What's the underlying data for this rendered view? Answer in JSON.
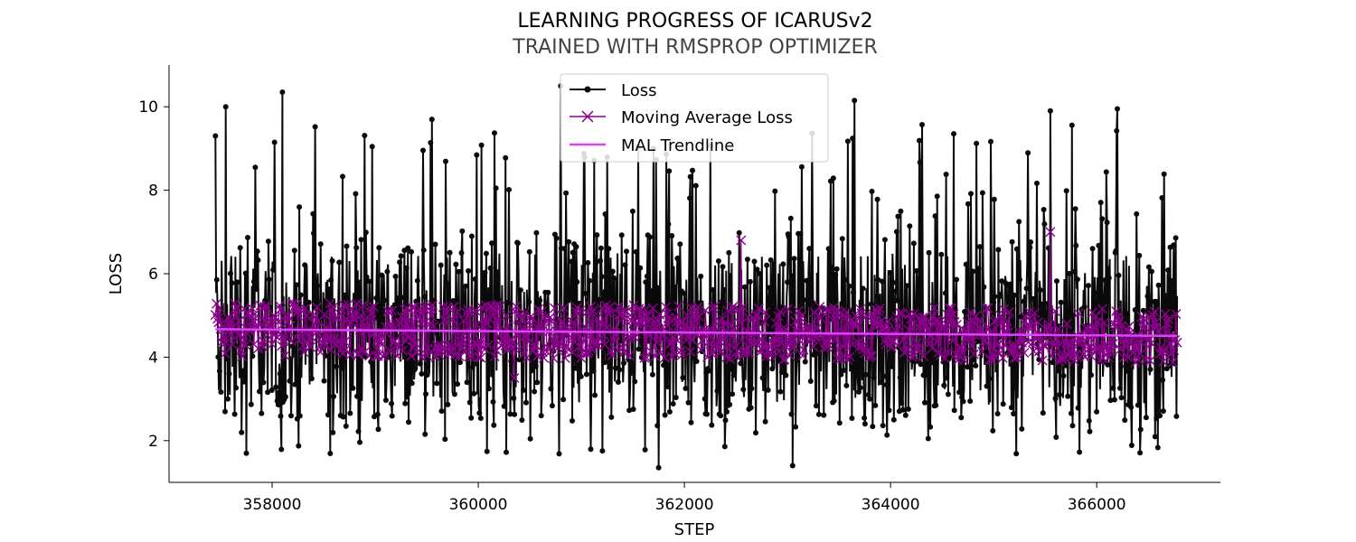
{
  "chart_data": {
    "type": "line",
    "title": "LEARNING PROGRESS OF ICARUSv2",
    "subtitle": "TRAINED WITH RMSPROP OPTIMIZER",
    "xlabel": "STEP",
    "ylabel": "LOSS",
    "xlim": [
      357000,
      367200
    ],
    "ylim": [
      1.0,
      11.0
    ],
    "xticks": [
      358000,
      360000,
      362000,
      364000,
      366000
    ],
    "yticks": [
      2,
      4,
      6,
      8,
      10
    ],
    "grid": false,
    "legend_position": "top-center",
    "series": [
      {
        "name": "Loss",
        "color": "#0a0a0a",
        "marker": "dot",
        "x_range": [
          357450,
          366780
        ],
        "mean": 4.65,
        "min": 1.4,
        "max": 10.5,
        "notable_points": [
          {
            "x": 357450,
            "y": 9.3
          },
          {
            "x": 357550,
            "y": 10.0
          },
          {
            "x": 357750,
            "y": 1.7
          },
          {
            "x": 358100,
            "y": 10.35
          },
          {
            "x": 359550,
            "y": 9.7
          },
          {
            "x": 360800,
            "y": 10.5
          },
          {
            "x": 361700,
            "y": 9.0
          },
          {
            "x": 361750,
            "y": 1.35
          },
          {
            "x": 363050,
            "y": 1.4
          },
          {
            "x": 363650,
            "y": 10.15
          },
          {
            "x": 365550,
            "y": 9.9
          },
          {
            "x": 366200,
            "y": 9.95
          }
        ]
      },
      {
        "name": "Moving Average Loss",
        "color": "#8b008b",
        "marker": "x",
        "x_range": [
          357450,
          366780
        ],
        "mean": 4.6,
        "notable_points": [
          {
            "x": 360350,
            "y": 3.5
          },
          {
            "x": 362550,
            "y": 6.8
          },
          {
            "x": 365550,
            "y": 7.0
          }
        ]
      },
      {
        "name": "MAL Trendline",
        "color": "#e040fb",
        "x": [
          357450,
          366780
        ],
        "values": [
          4.67,
          4.51
        ]
      }
    ]
  }
}
